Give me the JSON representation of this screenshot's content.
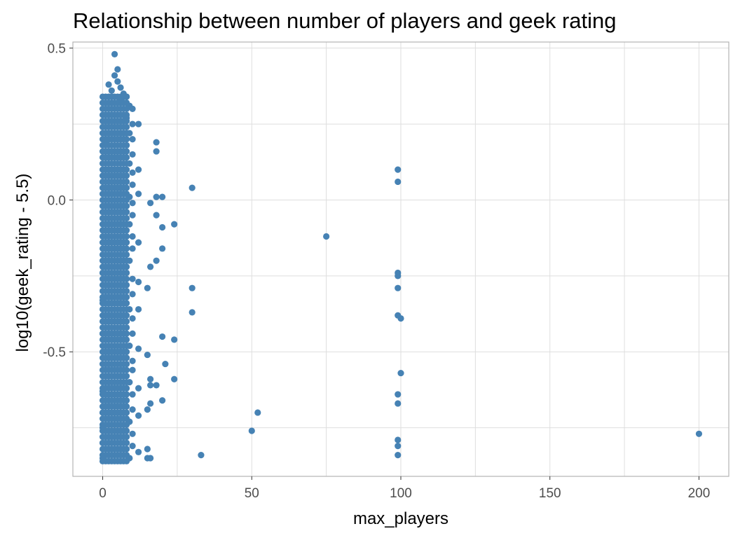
{
  "chart_data": {
    "type": "scatter",
    "title": "Relationship between number of players and geek rating",
    "xlabel": "max_players",
    "ylabel": "log10(geek_rating - 5.5)",
    "xlim": [
      -10,
      210
    ],
    "ylim": [
      -0.91,
      0.52
    ],
    "x_ticks": [
      0,
      50,
      100,
      150,
      200
    ],
    "x_tick_labels": [
      "0",
      "50",
      "100",
      "150",
      "200"
    ],
    "y_ticks": [
      -0.5,
      0.0,
      0.5
    ],
    "y_tick_labels": [
      "-0.5",
      "0.0",
      "0.5"
    ],
    "grid": true,
    "legend": "none",
    "colors": {
      "point": "#4682b4",
      "grid": "#dedede",
      "panel_border": "#b3b3b3"
    },
    "dense_clusters": [
      {
        "x_values": [
          0,
          1,
          2,
          3,
          4,
          5,
          6,
          7,
          8
        ],
        "y_range": [
          -0.86,
          0.34
        ]
      }
    ],
    "points": [
      {
        "x": 4,
        "y": 0.48
      },
      {
        "x": 5,
        "y": 0.43
      },
      {
        "x": 4,
        "y": 0.41
      },
      {
        "x": 5,
        "y": 0.39
      },
      {
        "x": 2,
        "y": 0.38
      },
      {
        "x": 6,
        "y": 0.37
      },
      {
        "x": 3,
        "y": 0.36
      },
      {
        "x": 7,
        "y": 0.35
      },
      {
        "x": 8,
        "y": 0.34
      },
      {
        "x": 6,
        "y": 0.33
      },
      {
        "x": 9,
        "y": 0.31
      },
      {
        "x": 10,
        "y": 0.3
      },
      {
        "x": 8,
        "y": 0.27
      },
      {
        "x": 10,
        "y": 0.25
      },
      {
        "x": 12,
        "y": 0.25
      },
      {
        "x": 9,
        "y": 0.22
      },
      {
        "x": 10,
        "y": 0.2
      },
      {
        "x": 1,
        "y": 0.19
      },
      {
        "x": 8,
        "y": 0.18
      },
      {
        "x": 10,
        "y": 0.15
      },
      {
        "x": 9,
        "y": 0.12
      },
      {
        "x": 10,
        "y": 0.09
      },
      {
        "x": 12,
        "y": 0.1
      },
      {
        "x": 10,
        "y": 0.05
      },
      {
        "x": 9,
        "y": 0.01
      },
      {
        "x": 10,
        "y": -0.01
      },
      {
        "x": 12,
        "y": 0.02
      },
      {
        "x": 10,
        "y": -0.05
      },
      {
        "x": 9,
        "y": -0.08
      },
      {
        "x": 10,
        "y": -0.12
      },
      {
        "x": 12,
        "y": -0.14
      },
      {
        "x": 10,
        "y": -0.16
      },
      {
        "x": 9,
        "y": -0.2
      },
      {
        "x": 10,
        "y": -0.26
      },
      {
        "x": 12,
        "y": -0.27
      },
      {
        "x": 10,
        "y": -0.31
      },
      {
        "x": 9,
        "y": -0.36
      },
      {
        "x": 10,
        "y": -0.39
      },
      {
        "x": 12,
        "y": -0.36
      },
      {
        "x": 10,
        "y": -0.44
      },
      {
        "x": 9,
        "y": -0.48
      },
      {
        "x": 10,
        "y": -0.53
      },
      {
        "x": 12,
        "y": -0.49
      },
      {
        "x": 10,
        "y": -0.56
      },
      {
        "x": 9,
        "y": -0.6
      },
      {
        "x": 10,
        "y": -0.64
      },
      {
        "x": 12,
        "y": -0.62
      },
      {
        "x": 10,
        "y": -0.69
      },
      {
        "x": 9,
        "y": -0.73
      },
      {
        "x": 10,
        "y": -0.77
      },
      {
        "x": 12,
        "y": -0.71
      },
      {
        "x": 10,
        "y": -0.81
      },
      {
        "x": 9,
        "y": -0.85
      },
      {
        "x": 12,
        "y": -0.83
      },
      {
        "x": 0,
        "y": -0.24
      },
      {
        "x": 0,
        "y": -0.33
      },
      {
        "x": 0,
        "y": -0.44
      },
      {
        "x": 0,
        "y": -0.63
      },
      {
        "x": 0,
        "y": -0.7
      },
      {
        "x": 0,
        "y": -0.75
      },
      {
        "x": 0,
        "y": -0.8
      },
      {
        "x": 0,
        "y": -0.85
      },
      {
        "x": 15,
        "y": -0.51
      },
      {
        "x": 15,
        "y": -0.69
      },
      {
        "x": 15,
        "y": -0.82
      },
      {
        "x": 15,
        "y": -0.85
      },
      {
        "x": 16,
        "y": -0.01
      },
      {
        "x": 16,
        "y": -0.22
      },
      {
        "x": 16,
        "y": -0.59
      },
      {
        "x": 16,
        "y": -0.61
      },
      {
        "x": 16,
        "y": -0.67
      },
      {
        "x": 16,
        "y": -0.85
      },
      {
        "x": 15,
        "y": -0.29
      },
      {
        "x": 18,
        "y": 0.19
      },
      {
        "x": 18,
        "y": 0.16
      },
      {
        "x": 18,
        "y": 0.01
      },
      {
        "x": 18,
        "y": -0.05
      },
      {
        "x": 18,
        "y": -0.2
      },
      {
        "x": 18,
        "y": -0.61
      },
      {
        "x": 20,
        "y": 0.01
      },
      {
        "x": 20,
        "y": -0.09
      },
      {
        "x": 20,
        "y": -0.16
      },
      {
        "x": 20,
        "y": -0.45
      },
      {
        "x": 20,
        "y": -0.66
      },
      {
        "x": 21,
        "y": -0.54
      },
      {
        "x": 24,
        "y": -0.08
      },
      {
        "x": 24,
        "y": -0.46
      },
      {
        "x": 24,
        "y": -0.59
      },
      {
        "x": 30,
        "y": 0.04
      },
      {
        "x": 30,
        "y": -0.29
      },
      {
        "x": 30,
        "y": -0.37
      },
      {
        "x": 33,
        "y": -0.84
      },
      {
        "x": 50,
        "y": -0.76
      },
      {
        "x": 52,
        "y": -0.7
      },
      {
        "x": 75,
        "y": -0.12
      },
      {
        "x": 99,
        "y": 0.1
      },
      {
        "x": 99,
        "y": 0.06
      },
      {
        "x": 99,
        "y": -0.24
      },
      {
        "x": 99,
        "y": -0.25
      },
      {
        "x": 99,
        "y": -0.29
      },
      {
        "x": 99,
        "y": -0.38
      },
      {
        "x": 100,
        "y": -0.39
      },
      {
        "x": 100,
        "y": -0.57
      },
      {
        "x": 99,
        "y": -0.64
      },
      {
        "x": 99,
        "y": -0.67
      },
      {
        "x": 99,
        "y": -0.79
      },
      {
        "x": 99,
        "y": -0.81
      },
      {
        "x": 99,
        "y": -0.84
      },
      {
        "x": 200,
        "y": -0.77
      }
    ]
  }
}
